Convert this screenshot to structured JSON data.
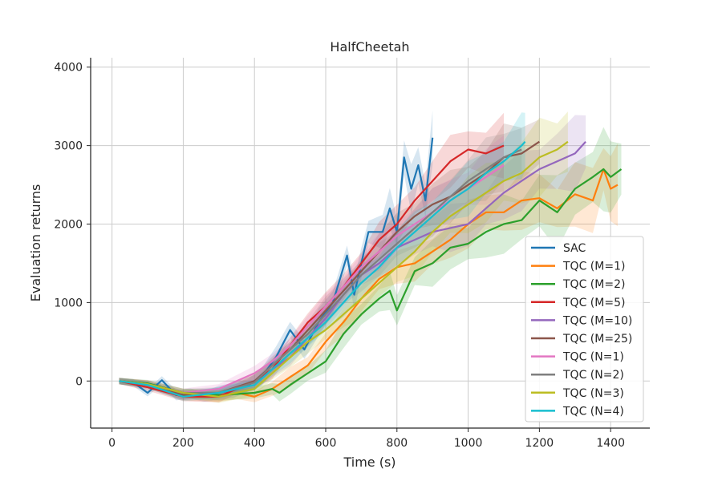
{
  "chart_data": {
    "type": "line",
    "title": "HalfCheetah",
    "xlabel": "Time (s)",
    "ylabel": "Evaluation returns",
    "xlim": [
      -60,
      1510
    ],
    "ylim": [
      -600,
      4120
    ],
    "xticks": [
      0,
      200,
      400,
      600,
      800,
      1000,
      1200,
      1400
    ],
    "xtick_labels": [
      "0",
      "200",
      "400",
      "600",
      "800",
      "1000",
      "1200",
      "1400"
    ],
    "yticks": [
      0,
      1000,
      2000,
      3000,
      4000
    ],
    "ytick_labels": [
      "0",
      "1000",
      "2000",
      "3000",
      "4000"
    ],
    "grid": true,
    "legend_position": "bottom-right",
    "series": [
      {
        "name": "SAC",
        "color": "#1f77b4",
        "x": [
          20,
          60,
          100,
          140,
          180,
          220,
          260,
          300,
          340,
          380,
          420,
          460,
          500,
          540,
          580,
          620,
          660,
          680,
          700,
          720,
          760,
          780,
          800,
          820,
          840,
          860,
          880,
          900
        ],
        "y": [
          0,
          -20,
          -150,
          10,
          -180,
          -160,
          -200,
          -150,
          -120,
          -60,
          50,
          300,
          650,
          400,
          750,
          1000,
          1600,
          1100,
          1500,
          1900,
          1900,
          2200,
          1900,
          2850,
          2450,
          2750,
          2300,
          3100
        ],
        "spread": 320
      },
      {
        "name": "TQC (M=1)",
        "color": "#ff7f0e",
        "x": [
          20,
          100,
          200,
          300,
          350,
          400,
          450,
          500,
          550,
          600,
          650,
          700,
          750,
          800,
          850,
          900,
          950,
          1000,
          1050,
          1100,
          1150,
          1200,
          1250,
          1300,
          1350,
          1380,
          1400,
          1420
        ],
        "y": [
          0,
          -40,
          -200,
          -200,
          -150,
          -200,
          -100,
          50,
          200,
          500,
          750,
          1050,
          1300,
          1450,
          1500,
          1650,
          1800,
          2000,
          2150,
          2150,
          2300,
          2330,
          2200,
          2380,
          2300,
          2700,
          2450,
          2500
        ],
        "spread": 500
      },
      {
        "name": "TQC (M=2)",
        "color": "#2ca02c",
        "x": [
          20,
          100,
          200,
          300,
          400,
          450,
          470,
          500,
          550,
          600,
          650,
          700,
          750,
          780,
          800,
          850,
          900,
          950,
          1000,
          1050,
          1100,
          1150,
          1200,
          1250,
          1300,
          1350,
          1380,
          1400,
          1430
        ],
        "y": [
          0,
          -30,
          -150,
          -180,
          -150,
          -100,
          -150,
          -50,
          100,
          250,
          600,
          850,
          1050,
          1150,
          900,
          1400,
          1500,
          1700,
          1750,
          1900,
          2000,
          2050,
          2300,
          2150,
          2450,
          2600,
          2700,
          2600,
          2700
        ],
        "spread": 560
      },
      {
        "name": "TQC (M=5)",
        "color": "#d62728",
        "x": [
          20,
          100,
          200,
          300,
          350,
          400,
          450,
          500,
          550,
          600,
          650,
          700,
          750,
          800,
          850,
          900,
          950,
          1000,
          1050,
          1100
        ],
        "y": [
          0,
          -80,
          -200,
          -200,
          -100,
          0,
          150,
          450,
          750,
          950,
          1200,
          1500,
          1800,
          2000,
          2300,
          2550,
          2800,
          2950,
          2900,
          3000
        ],
        "spread": 380
      },
      {
        "name": "TQC (M=10)",
        "color": "#9467bd",
        "x": [
          20,
          100,
          200,
          300,
          400,
          450,
          500,
          550,
          600,
          650,
          700,
          750,
          800,
          850,
          900,
          950,
          1000,
          1050,
          1100,
          1150,
          1200,
          1250,
          1300,
          1330
        ],
        "y": [
          0,
          -50,
          -180,
          -150,
          -50,
          150,
          300,
          550,
          800,
          1100,
          1350,
          1500,
          1700,
          1800,
          1900,
          1950,
          2000,
          2200,
          2400,
          2550,
          2700,
          2800,
          2900,
          3050
        ],
        "spread": 480
      },
      {
        "name": "TQC (M=25)",
        "color": "#8c564b",
        "x": [
          20,
          100,
          200,
          300,
          400,
          450,
          500,
          550,
          600,
          650,
          700,
          750,
          800,
          850,
          900,
          950,
          1000,
          1050,
          1100,
          1150,
          1200
        ],
        "y": [
          0,
          -50,
          -180,
          -150,
          0,
          200,
          400,
          650,
          900,
          1150,
          1400,
          1650,
          1900,
          2100,
          2250,
          2350,
          2500,
          2650,
          2850,
          2900,
          3050
        ],
        "spread": 450
      },
      {
        "name": "TQC (N=1)",
        "color": "#e377c2",
        "x": [
          20,
          100,
          200,
          300,
          400,
          450,
          500,
          550,
          600,
          650,
          700,
          750,
          800,
          850,
          900,
          950,
          1000,
          1050,
          1100
        ],
        "y": [
          0,
          -40,
          -150,
          -100,
          100,
          250,
          450,
          700,
          950,
          1200,
          1450,
          1650,
          1850,
          2000,
          2150,
          2300,
          2450,
          2600,
          2750
        ],
        "spread": 380
      },
      {
        "name": "TQC (N=2)",
        "color": "#7f7f7f",
        "x": [
          20,
          100,
          200,
          300,
          400,
          450,
          500,
          550,
          600,
          650,
          700,
          750,
          800,
          850,
          900,
          950,
          1000,
          1050,
          1100,
          1150
        ],
        "y": [
          0,
          -40,
          -150,
          -150,
          -20,
          200,
          400,
          600,
          850,
          1100,
          1350,
          1550,
          1750,
          1950,
          2150,
          2350,
          2550,
          2700,
          2850,
          2950
        ],
        "spread": 420
      },
      {
        "name": "TQC (N=3)",
        "color": "#bcbd22",
        "x": [
          20,
          100,
          200,
          300,
          400,
          450,
          500,
          550,
          600,
          650,
          700,
          750,
          800,
          850,
          900,
          950,
          1000,
          1050,
          1100,
          1150,
          1200,
          1250,
          1280
        ],
        "y": [
          0,
          -40,
          -150,
          -200,
          -100,
          100,
          300,
          500,
          650,
          850,
          1050,
          1250,
          1450,
          1650,
          1900,
          2100,
          2250,
          2400,
          2550,
          2650,
          2850,
          2950,
          3050
        ],
        "spread": 540
      },
      {
        "name": "TQC (N=4)",
        "color": "#17becf",
        "x": [
          20,
          100,
          200,
          300,
          400,
          450,
          500,
          550,
          600,
          650,
          700,
          750,
          800,
          850,
          900,
          950,
          1000,
          1050,
          1100,
          1150,
          1160
        ],
        "y": [
          0,
          -50,
          -200,
          -150,
          -50,
          150,
          350,
          550,
          750,
          1000,
          1250,
          1450,
          1700,
          1900,
          2100,
          2300,
          2450,
          2650,
          2800,
          3000,
          3050
        ],
        "spread": 420
      }
    ]
  }
}
